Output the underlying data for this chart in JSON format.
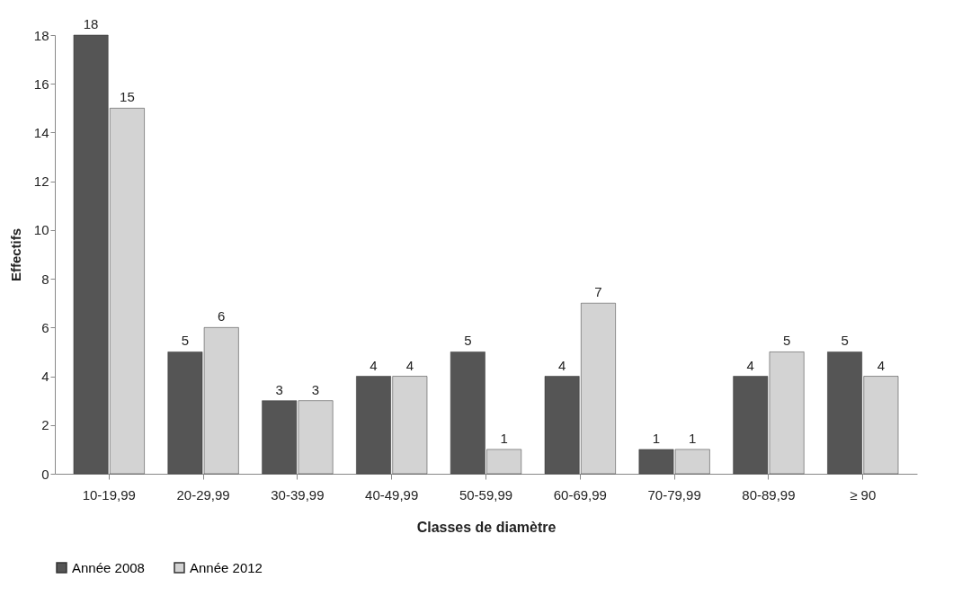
{
  "chart_data": {
    "type": "bar",
    "xlabel": "Classes de diamètre",
    "ylabel": "Effectifs",
    "categories": [
      "10-19,99",
      "20-29,99",
      "30-39,99",
      "40-49,99",
      "50-59,99",
      "60-69,99",
      "70-79,99",
      "80-89,99",
      "≥ 90"
    ],
    "series": [
      {
        "name": "Année 2008",
        "color": "#555555",
        "values": [
          18,
          5,
          3,
          4,
          5,
          4,
          1,
          4,
          5
        ]
      },
      {
        "name": "Année 2012",
        "color": "#d3d3d3",
        "values": [
          15,
          6,
          3,
          4,
          1,
          7,
          1,
          5,
          4
        ]
      }
    ],
    "ylim": [
      0,
      18
    ],
    "yticks": [
      0,
      2,
      4,
      6,
      8,
      10,
      12,
      14,
      16,
      18
    ],
    "data_labels": true,
    "legend": "bottom"
  }
}
